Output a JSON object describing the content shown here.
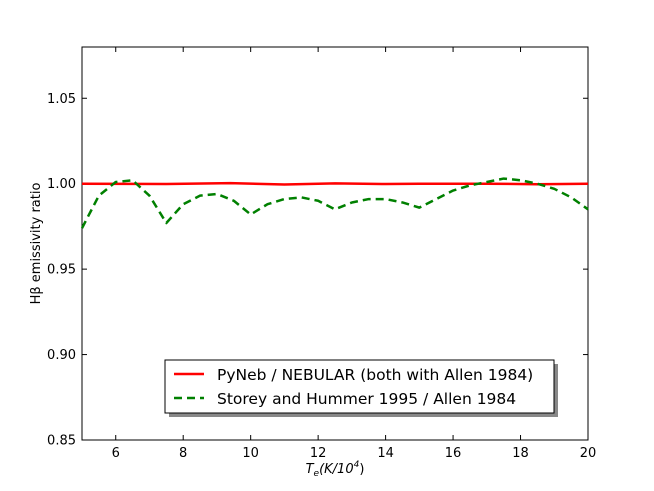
{
  "chart_data": {
    "type": "line",
    "xlabel": "T_e (K/10^4)",
    "ylabel": "Hβ emissivity ratio",
    "xlim": [
      5,
      20
    ],
    "ylim": [
      0.85,
      1.08
    ],
    "x_ticks": [
      6,
      8,
      10,
      12,
      14,
      16,
      18,
      20
    ],
    "y_ticks": [
      0.85,
      0.9,
      0.95,
      1.0,
      1.05
    ],
    "x_tick_labels": [
      "6",
      "8",
      "10",
      "12",
      "14",
      "16",
      "18",
      "20"
    ],
    "y_tick_labels": [
      "0.85",
      "0.90",
      "0.95",
      "1.00",
      "1.05"
    ],
    "grid": false,
    "legend_position": "lower-right",
    "series": [
      {
        "name": "PyNeb / NEBULAR (both with Allen 1984)",
        "color": "#ff0000",
        "style": "solid",
        "x": [
          5,
          7.5,
          9.4,
          11,
          12.5,
          14,
          15,
          17,
          18.5,
          20
        ],
        "y": [
          1.0,
          0.9998,
          1.0003,
          0.9995,
          1.0002,
          0.9998,
          1.0,
          1.0,
          0.9997,
          1.0
        ]
      },
      {
        "name": "Storey and Hummer 1995 / Allen 1984",
        "color": "#008000",
        "style": "dashed",
        "x": [
          5,
          5.5,
          6,
          6.5,
          7,
          7.5,
          8,
          8.5,
          9,
          9.5,
          10,
          10.5,
          11,
          11.5,
          12,
          12.5,
          13,
          13.5,
          14,
          14.5,
          15,
          15.5,
          16,
          16.5,
          17,
          17.5,
          18,
          18.5,
          19,
          19.5,
          20
        ],
        "y": [
          0.974,
          0.993,
          1.001,
          1.002,
          0.993,
          0.977,
          0.988,
          0.993,
          0.994,
          0.99,
          0.982,
          0.988,
          0.991,
          0.992,
          0.99,
          0.985,
          0.989,
          0.991,
          0.991,
          0.989,
          0.986,
          0.991,
          0.996,
          0.999,
          1.001,
          1.003,
          1.002,
          1.0,
          0.997,
          0.992,
          0.985
        ]
      }
    ]
  }
}
